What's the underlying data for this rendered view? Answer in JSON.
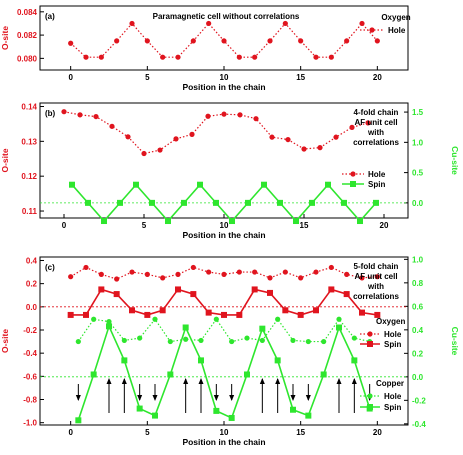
{
  "colors": {
    "red": "#e0141e",
    "green": "#2ee62e",
    "black": "#000000"
  },
  "chart_data": [
    {
      "type": "line",
      "panel_label": "(a)",
      "title": "Paramagnetic cell without correlations",
      "xlabel": "Position in the chain",
      "ylabel_left": "O-site",
      "xlim": [
        -2,
        22
      ],
      "ylim_left": [
        0.079,
        0.0845
      ],
      "xticks": [
        "0",
        "5",
        "10",
        "15",
        "20"
      ],
      "yticks_left": [
        "0.080",
        "0.082",
        "0.084"
      ],
      "legend_group": "Oxygen",
      "series": [
        {
          "name": "Hole",
          "axis": "left",
          "color": "#e0141e",
          "style": "dotted",
          "marker": "circle",
          "x": [
            0,
            1,
            2,
            3,
            4,
            5,
            6,
            7,
            8,
            9,
            10,
            11,
            12,
            13,
            14,
            15,
            16,
            17,
            18,
            19,
            20
          ],
          "y": [
            0.0813,
            0.0801,
            0.0801,
            0.0815,
            0.083,
            0.0815,
            0.0801,
            0.0801,
            0.0815,
            0.083,
            0.0815,
            0.0801,
            0.0801,
            0.0815,
            0.083,
            0.0815,
            0.0801,
            0.0801,
            0.0815,
            0.083,
            0.0815
          ]
        }
      ]
    },
    {
      "type": "line",
      "panel_label": "(b)",
      "annotation": [
        "4-fold chain",
        "AF unit cell",
        "with",
        "correlations"
      ],
      "xlabel": "Position in the chain",
      "ylabel_left": "O-site",
      "ylabel_right": "Cu-site",
      "xlim": [
        -1.5,
        21.5
      ],
      "ylim_left": [
        0.108,
        0.141
      ],
      "ylim_right": [
        -0.25,
        1.65
      ],
      "xticks": [
        "0",
        "5",
        "10",
        "15",
        "20"
      ],
      "yticks_left": [
        "0.11",
        "0.12",
        "0.13",
        "0.14"
      ],
      "yticks_right": [
        "0.0",
        "0.5",
        "1.0",
        "1.5"
      ],
      "series": [
        {
          "name": "Hole",
          "axis": "left",
          "color": "#e0141e",
          "style": "dotted",
          "marker": "circle",
          "x": [
            0,
            1,
            2,
            3,
            4,
            5,
            6,
            7,
            8,
            9,
            10,
            11,
            12,
            13,
            14,
            15,
            16,
            17,
            18,
            19
          ],
          "y": [
            0.1385,
            0.1376,
            0.1371,
            0.1343,
            0.1313,
            0.1265,
            0.1275,
            0.1307,
            0.132,
            0.1372,
            0.1378,
            0.1376,
            0.1365,
            0.1312,
            0.1305,
            0.1278,
            0.1282,
            0.1312,
            0.134,
            0.1353
          ]
        },
        {
          "name": "Spin",
          "axis": "right",
          "color": "#2ee62e",
          "style": "solid",
          "marker": "square",
          "x": [
            0.5,
            1.5,
            2.5,
            3.5,
            4.5,
            5.5,
            6.5,
            7.5,
            8.5,
            9.5,
            10.5,
            11.5,
            12.5,
            13.5,
            14.5,
            15.5,
            16.5,
            17.5,
            18.5,
            19.5
          ],
          "y": [
            0.3,
            0.0,
            -0.3,
            0.0,
            0.3,
            0.0,
            -0.3,
            0.0,
            0.3,
            0.0,
            -0.3,
            0.0,
            0.3,
            0.0,
            -0.3,
            0.0,
            0.3,
            0.0,
            -0.3,
            0.0
          ]
        }
      ]
    },
    {
      "type": "line",
      "panel_label": "(c)",
      "annotation": [
        "5-fold chain",
        "AF unit cell",
        "with",
        "correlations"
      ],
      "xlabel": "Position in the chain",
      "ylabel_left": "O-site",
      "ylabel_right": "Cu-site",
      "xlim": [
        -2,
        22
      ],
      "ylim_left": [
        -1.02,
        0.43
      ],
      "ylim_right": [
        -0.41,
        1.02
      ],
      "xticks": [
        "0",
        "5",
        "10",
        "15",
        "20"
      ],
      "yticks_left": [
        "-1.0",
        "-0.8",
        "-0.6",
        "-0.4",
        "-0.2",
        "0.0",
        "0.2",
        "0.4"
      ],
      "yticks_right": [
        "-0.4",
        "-0.2",
        "0.0",
        "0.2",
        "0.4",
        "0.6",
        "0.8",
        "1.0"
      ],
      "legend_groups": [
        "Oxygen",
        "Copper"
      ],
      "series": [
        {
          "name": "Hole",
          "group": "Oxygen",
          "axis": "left",
          "color": "#e0141e",
          "style": "dotted",
          "marker": "circle",
          "x": [
            0,
            1,
            2,
            3,
            4,
            5,
            6,
            7,
            8,
            9,
            10,
            11,
            12,
            13,
            14,
            15,
            16,
            17,
            18,
            19,
            20
          ],
          "y": [
            0.26,
            0.34,
            0.28,
            0.24,
            0.3,
            0.28,
            0.25,
            0.28,
            0.34,
            0.3,
            0.28,
            0.3,
            0.3,
            0.25,
            0.3,
            0.25,
            0.3,
            0.34,
            0.28,
            0.25,
            0.26
          ]
        },
        {
          "name": "Spin",
          "group": "Oxygen",
          "axis": "left",
          "color": "#e0141e",
          "style": "solid",
          "marker": "square",
          "x": [
            0,
            1,
            2,
            3,
            4,
            5,
            6,
            7,
            8,
            9,
            10,
            11,
            12,
            13,
            14,
            15,
            16,
            17,
            18,
            19,
            20
          ],
          "y": [
            -0.07,
            -0.07,
            0.15,
            0.11,
            -0.03,
            -0.07,
            -0.03,
            0.15,
            0.11,
            -0.05,
            -0.07,
            -0.07,
            0.15,
            0.12,
            -0.03,
            -0.07,
            -0.03,
            0.15,
            0.11,
            -0.05,
            -0.07
          ]
        },
        {
          "name": "Hole",
          "group": "Copper",
          "axis": "right",
          "color": "#2ee62e",
          "style": "dotted",
          "marker": "circle",
          "x": [
            0.5,
            1.5,
            2.5,
            3.5,
            4.5,
            5.5,
            6.5,
            7.5,
            8.5,
            9.5,
            10.5,
            11.5,
            12.5,
            13.5,
            14.5,
            15.5,
            16.5,
            17.5,
            18.5,
            19.5
          ],
          "y": [
            0.3,
            0.49,
            0.47,
            0.31,
            0.33,
            0.49,
            0.3,
            0.32,
            0.31,
            0.49,
            0.3,
            0.33,
            0.31,
            0.49,
            0.31,
            0.3,
            0.3,
            0.49,
            0.33,
            0.3
          ]
        },
        {
          "name": "Spin",
          "group": "Copper",
          "axis": "right",
          "color": "#2ee62e",
          "style": "solid",
          "marker": "square",
          "x": [
            0.5,
            1.5,
            2.5,
            3.5,
            4.5,
            5.5,
            6.5,
            7.5,
            8.5,
            9.5,
            10.5,
            11.5,
            12.5,
            13.5,
            14.5,
            15.5,
            16.5,
            17.5,
            18.5,
            19.5
          ],
          "y": [
            -0.37,
            0.02,
            0.43,
            0.14,
            -0.27,
            -0.33,
            0.02,
            0.42,
            0.14,
            -0.29,
            -0.35,
            0.02,
            0.41,
            0.14,
            -0.28,
            -0.33,
            0.02,
            0.42,
            0.14,
            -0.27
          ]
        }
      ]
    }
  ]
}
